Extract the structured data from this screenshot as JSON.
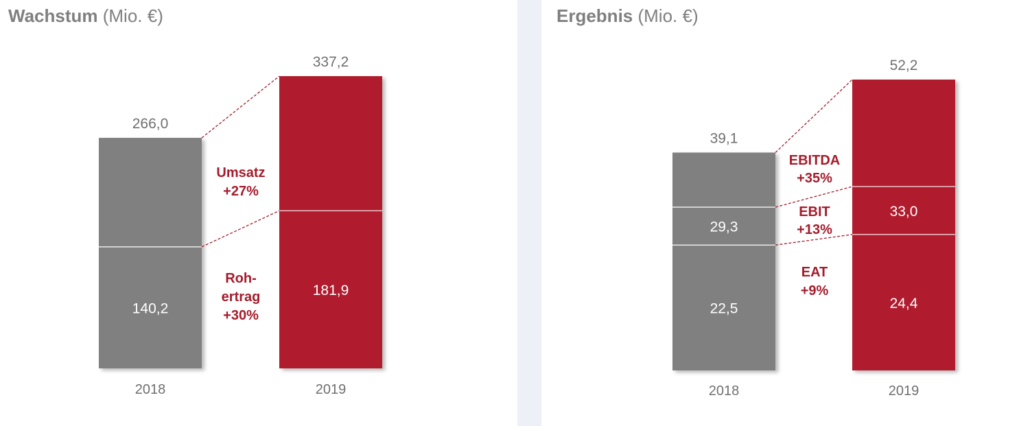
{
  "panels": [
    {
      "title_bold": "Wachstum",
      "title_unit": "(Mio. €)"
    },
    {
      "title_bold": "Ergebnis",
      "title_unit": "(Mio. €)"
    }
  ],
  "colors": {
    "y2018": "#808080",
    "y2019": "#b01c2e",
    "annotation": "#a51b2b"
  },
  "chart_data": [
    {
      "type": "bar",
      "title": "Wachstum (Mio. €)",
      "categories": [
        "2018",
        "2019"
      ],
      "series": [
        {
          "name": "Umsatz",
          "values": [
            266.0,
            337.2
          ],
          "labels": [
            "266,0",
            "337,2"
          ]
        },
        {
          "name": "Rohertrag",
          "values": [
            140.2,
            181.9
          ],
          "labels": [
            "140,2",
            "181,9"
          ]
        }
      ],
      "annotations": [
        {
          "lines": [
            "Umsatz",
            "+27%"
          ]
        },
        {
          "lines": [
            "Roh-",
            "ertrag",
            "+30%"
          ]
        }
      ],
      "ylim": [
        0,
        337.2
      ]
    },
    {
      "type": "bar",
      "title": "Ergebnis (Mio. €)",
      "categories": [
        "2018",
        "2019"
      ],
      "series": [
        {
          "name": "EBITDA",
          "values": [
            39.1,
            52.2
          ],
          "labels": [
            "39,1",
            "52,2"
          ]
        },
        {
          "name": "EBIT",
          "values": [
            29.3,
            33.0
          ],
          "labels": [
            "29,3",
            "33,0"
          ]
        },
        {
          "name": "EAT",
          "values": [
            22.5,
            24.4
          ],
          "labels": [
            "22,5",
            "24,4"
          ]
        }
      ],
      "annotations": [
        {
          "lines": [
            "EBITDA",
            "+35%"
          ]
        },
        {
          "lines": [
            "EBIT",
            "+13%"
          ]
        },
        {
          "lines": [
            "EAT",
            "+9%"
          ]
        }
      ],
      "ylim": [
        0,
        52.2
      ]
    }
  ]
}
